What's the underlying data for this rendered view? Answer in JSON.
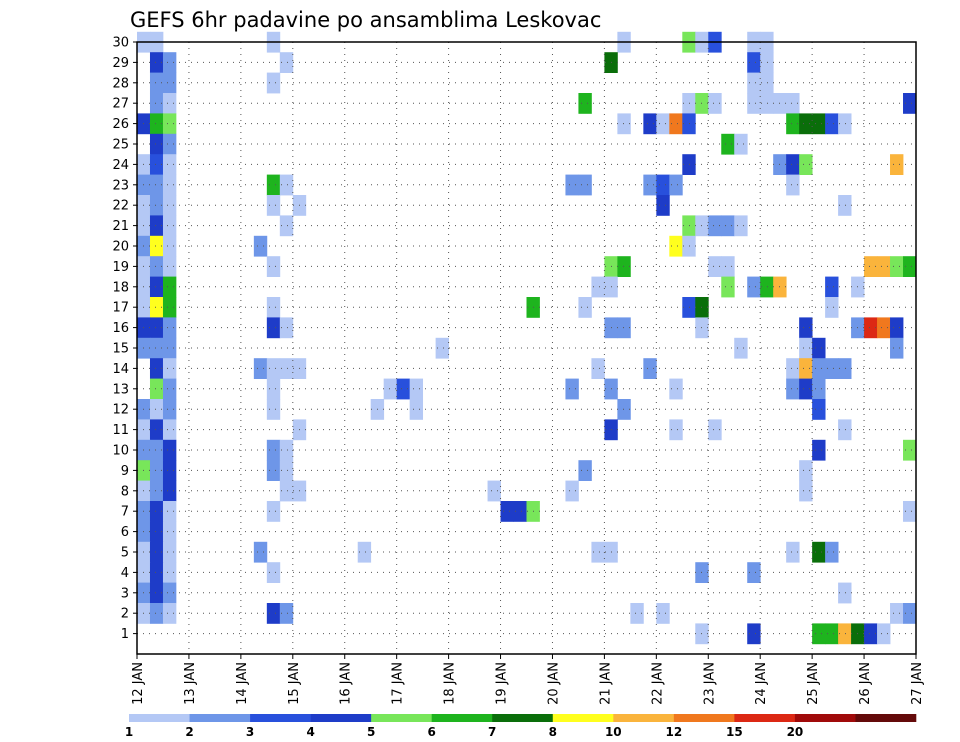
{
  "chart_data": {
    "type": "heatmap",
    "title": "GEFS 6hr padavine po ansamblima Leskovac",
    "xlabel": "",
    "ylabel": "",
    "x_ticks": [
      "12 JAN",
      "13 JAN",
      "14 JAN",
      "15 JAN",
      "16 JAN",
      "17 JAN",
      "18 JAN",
      "19 JAN",
      "20 JAN",
      "21 JAN",
      "22 JAN",
      "23 JAN",
      "24 JAN",
      "25 JAN",
      "26 JAN",
      "27 JAN"
    ],
    "x_range_days": [
      0,
      15
    ],
    "y_ticks": [
      "1",
      "2",
      "3",
      "4",
      "5",
      "6",
      "7",
      "8",
      "9",
      "10",
      "11",
      "12",
      "13",
      "14",
      "15",
      "16",
      "17",
      "18",
      "19",
      "20",
      "21",
      "22",
      "23",
      "24",
      "25",
      "26",
      "27",
      "28",
      "29",
      "30"
    ],
    "y_range": [
      0,
      30
    ],
    "grid": true,
    "colorbar": {
      "position": "bottom",
      "bins": [
        {
          "lower": "1",
          "color": "#b4c8f5"
        },
        {
          "lower": "2",
          "color": "#6e96e8"
        },
        {
          "lower": "3",
          "color": "#2850dc"
        },
        {
          "lower": "4",
          "color": "#1e3cc8"
        },
        {
          "lower": "5",
          "color": "#78e65a"
        },
        {
          "lower": "6",
          "color": "#1eb41e"
        },
        {
          "lower": "7",
          "color": "#0a6e0a"
        },
        {
          "lower": "8",
          "color": "#ffff1e"
        },
        {
          "lower": "10",
          "color": "#fab43c"
        },
        {
          "lower": "12",
          "color": "#f0781e"
        },
        {
          "lower": "15",
          "color": "#dc2814"
        },
        {
          "lower": "20",
          "color": "#a00a0a"
        },
        {
          "lower": "",
          "color": "#640a0a"
        }
      ],
      "labels": [
        "1",
        "2",
        "3",
        "4",
        "5",
        "6",
        "7",
        "8",
        "10",
        "12",
        "15",
        "20"
      ]
    },
    "cell_duration_days": 0.25,
    "cells": [
      {
        "m": 30,
        "t": 0.0,
        "b": 0
      },
      {
        "m": 30,
        "t": 0.25,
        "b": 0
      },
      {
        "m": 30,
        "t": 2.5,
        "b": 0
      },
      {
        "m": 30,
        "t": 9.25,
        "b": 0
      },
      {
        "m": 30,
        "t": 10.5,
        "b": 4
      },
      {
        "m": 30,
        "t": 10.75,
        "b": 0
      },
      {
        "m": 30,
        "t": 11.0,
        "b": 2
      },
      {
        "m": 30,
        "t": 11.75,
        "b": 0
      },
      {
        "m": 30,
        "t": 12.0,
        "b": 0
      },
      {
        "m": 29,
        "t": 0.25,
        "b": 3
      },
      {
        "m": 29,
        "t": 0.5,
        "b": 1
      },
      {
        "m": 29,
        "t": 2.75,
        "b": 0
      },
      {
        "m": 29,
        "t": 9.0,
        "b": 6
      },
      {
        "m": 29,
        "t": 11.75,
        "b": 2
      },
      {
        "m": 29,
        "t": 12.0,
        "b": 0
      },
      {
        "m": 28,
        "t": 0.25,
        "b": 1
      },
      {
        "m": 28,
        "t": 0.5,
        "b": 1
      },
      {
        "m": 28,
        "t": 2.5,
        "b": 0
      },
      {
        "m": 28,
        "t": 11.75,
        "b": 0
      },
      {
        "m": 28,
        "t": 12.0,
        "b": 0
      },
      {
        "m": 27,
        "t": 0.25,
        "b": 1
      },
      {
        "m": 27,
        "t": 0.5,
        "b": 0
      },
      {
        "m": 27,
        "t": 8.5,
        "b": 5
      },
      {
        "m": 27,
        "t": 10.5,
        "b": 0
      },
      {
        "m": 27,
        "t": 10.75,
        "b": 4
      },
      {
        "m": 27,
        "t": 11.0,
        "b": 0
      },
      {
        "m": 27,
        "t": 11.75,
        "b": 0
      },
      {
        "m": 27,
        "t": 12.0,
        "b": 0
      },
      {
        "m": 27,
        "t": 12.25,
        "b": 0
      },
      {
        "m": 27,
        "t": 12.5,
        "b": 0
      },
      {
        "m": 27,
        "t": 14.75,
        "b": 3
      },
      {
        "m": 26,
        "t": 0.0,
        "b": 3
      },
      {
        "m": 26,
        "t": 0.25,
        "b": 5
      },
      {
        "m": 26,
        "t": 0.5,
        "b": 4
      },
      {
        "m": 26,
        "t": 9.25,
        "b": 0
      },
      {
        "m": 26,
        "t": 9.75,
        "b": 3
      },
      {
        "m": 26,
        "t": 10.0,
        "b": 0
      },
      {
        "m": 26,
        "t": 10.25,
        "b": 9
      },
      {
        "m": 26,
        "t": 10.5,
        "b": 2
      },
      {
        "m": 26,
        "t": 12.5,
        "b": 5
      },
      {
        "m": 26,
        "t": 12.75,
        "b": 6
      },
      {
        "m": 26,
        "t": 13.0,
        "b": 6
      },
      {
        "m": 26,
        "t": 13.25,
        "b": 2
      },
      {
        "m": 26,
        "t": 13.5,
        "b": 0
      },
      {
        "m": 25,
        "t": 0.25,
        "b": 3
      },
      {
        "m": 25,
        "t": 0.5,
        "b": 1
      },
      {
        "m": 25,
        "t": 11.25,
        "b": 5
      },
      {
        "m": 25,
        "t": 11.5,
        "b": 0
      },
      {
        "m": 24,
        "t": 0.0,
        "b": 0
      },
      {
        "m": 24,
        "t": 0.25,
        "b": 2
      },
      {
        "m": 24,
        "t": 0.5,
        "b": 0
      },
      {
        "m": 24,
        "t": 10.5,
        "b": 3
      },
      {
        "m": 24,
        "t": 12.25,
        "b": 1
      },
      {
        "m": 24,
        "t": 12.5,
        "b": 3
      },
      {
        "m": 24,
        "t": 12.75,
        "b": 4
      },
      {
        "m": 24,
        "t": 14.5,
        "b": 8
      },
      {
        "m": 23,
        "t": 0.0,
        "b": 1
      },
      {
        "m": 23,
        "t": 0.25,
        "b": 1
      },
      {
        "m": 23,
        "t": 0.5,
        "b": 0
      },
      {
        "m": 23,
        "t": 2.5,
        "b": 5
      },
      {
        "m": 23,
        "t": 2.75,
        "b": 0
      },
      {
        "m": 23,
        "t": 8.25,
        "b": 1
      },
      {
        "m": 23,
        "t": 8.5,
        "b": 1
      },
      {
        "m": 23,
        "t": 9.75,
        "b": 1
      },
      {
        "m": 23,
        "t": 10.0,
        "b": 2
      },
      {
        "m": 23,
        "t": 10.25,
        "b": 1
      },
      {
        "m": 23,
        "t": 12.5,
        "b": 0
      },
      {
        "m": 22,
        "t": 0.0,
        "b": 0
      },
      {
        "m": 22,
        "t": 0.25,
        "b": 1
      },
      {
        "m": 22,
        "t": 0.5,
        "b": 0
      },
      {
        "m": 22,
        "t": 2.5,
        "b": 0
      },
      {
        "m": 22,
        "t": 3.0,
        "b": 0
      },
      {
        "m": 22,
        "t": 10.0,
        "b": 3
      },
      {
        "m": 22,
        "t": 13.5,
        "b": 0
      },
      {
        "m": 21,
        "t": 0.0,
        "b": 0
      },
      {
        "m": 21,
        "t": 0.25,
        "b": 3
      },
      {
        "m": 21,
        "t": 0.5,
        "b": 0
      },
      {
        "m": 21,
        "t": 2.75,
        "b": 0
      },
      {
        "m": 21,
        "t": 10.5,
        "b": 4
      },
      {
        "m": 21,
        "t": 10.75,
        "b": 0
      },
      {
        "m": 21,
        "t": 11.0,
        "b": 1
      },
      {
        "m": 21,
        "t": 11.25,
        "b": 1
      },
      {
        "m": 21,
        "t": 11.5,
        "b": 0
      },
      {
        "m": 20,
        "t": 0.0,
        "b": 1
      },
      {
        "m": 20,
        "t": 0.25,
        "b": 7
      },
      {
        "m": 20,
        "t": 0.5,
        "b": 0
      },
      {
        "m": 20,
        "t": 2.25,
        "b": 1
      },
      {
        "m": 20,
        "t": 10.25,
        "b": 7
      },
      {
        "m": 20,
        "t": 10.5,
        "b": 0
      },
      {
        "m": 19,
        "t": 0.0,
        "b": 0
      },
      {
        "m": 19,
        "t": 0.25,
        "b": 1
      },
      {
        "m": 19,
        "t": 0.5,
        "b": 0
      },
      {
        "m": 19,
        "t": 2.5,
        "b": 0
      },
      {
        "m": 19,
        "t": 9.0,
        "b": 4
      },
      {
        "m": 19,
        "t": 9.25,
        "b": 5
      },
      {
        "m": 19,
        "t": 11.0,
        "b": 0
      },
      {
        "m": 19,
        "t": 11.25,
        "b": 0
      },
      {
        "m": 19,
        "t": 14.0,
        "b": 8
      },
      {
        "m": 19,
        "t": 14.25,
        "b": 8
      },
      {
        "m": 19,
        "t": 14.5,
        "b": 4
      },
      {
        "m": 19,
        "t": 14.75,
        "b": 5
      },
      {
        "m": 18,
        "t": 0.0,
        "b": 0
      },
      {
        "m": 18,
        "t": 0.25,
        "b": 3
      },
      {
        "m": 18,
        "t": 0.5,
        "b": 5
      },
      {
        "m": 18,
        "t": 8.75,
        "b": 0
      },
      {
        "m": 18,
        "t": 9.0,
        "b": 0
      },
      {
        "m": 18,
        "t": 11.25,
        "b": 4
      },
      {
        "m": 18,
        "t": 11.75,
        "b": 1
      },
      {
        "m": 18,
        "t": 12.0,
        "b": 5
      },
      {
        "m": 18,
        "t": 12.25,
        "b": 8
      },
      {
        "m": 18,
        "t": 13.25,
        "b": 2
      },
      {
        "m": 18,
        "t": 13.75,
        "b": 0
      },
      {
        "m": 17,
        "t": 0.0,
        "b": 0
      },
      {
        "m": 17,
        "t": 0.25,
        "b": 7
      },
      {
        "m": 17,
        "t": 0.5,
        "b": 5
      },
      {
        "m": 17,
        "t": 2.5,
        "b": 0
      },
      {
        "m": 17,
        "t": 7.5,
        "b": 5
      },
      {
        "m": 17,
        "t": 8.5,
        "b": 0
      },
      {
        "m": 17,
        "t": 10.5,
        "b": 2
      },
      {
        "m": 17,
        "t": 10.75,
        "b": 6
      },
      {
        "m": 17,
        "t": 13.25,
        "b": 0
      },
      {
        "m": 16,
        "t": 0.0,
        "b": 3
      },
      {
        "m": 16,
        "t": 0.25,
        "b": 3
      },
      {
        "m": 16,
        "t": 0.5,
        "b": 1
      },
      {
        "m": 16,
        "t": 2.5,
        "b": 3
      },
      {
        "m": 16,
        "t": 2.75,
        "b": 0
      },
      {
        "m": 16,
        "t": 9.0,
        "b": 1
      },
      {
        "m": 16,
        "t": 9.25,
        "b": 1
      },
      {
        "m": 16,
        "t": 10.75,
        "b": 0
      },
      {
        "m": 16,
        "t": 12.75,
        "b": 3
      },
      {
        "m": 16,
        "t": 13.75,
        "b": 1
      },
      {
        "m": 16,
        "t": 14.0,
        "b": 10
      },
      {
        "m": 16,
        "t": 14.25,
        "b": 9
      },
      {
        "m": 16,
        "t": 14.5,
        "b": 3
      },
      {
        "m": 15,
        "t": 0.0,
        "b": 1
      },
      {
        "m": 15,
        "t": 0.25,
        "b": 1
      },
      {
        "m": 15,
        "t": 0.5,
        "b": 1
      },
      {
        "m": 15,
        "t": 5.75,
        "b": 0
      },
      {
        "m": 15,
        "t": 11.5,
        "b": 0
      },
      {
        "m": 15,
        "t": 12.75,
        "b": 0
      },
      {
        "m": 15,
        "t": 13.0,
        "b": 3
      },
      {
        "m": 15,
        "t": 14.5,
        "b": 1
      },
      {
        "m": 14,
        "t": 0.25,
        "b": 3
      },
      {
        "m": 14,
        "t": 0.5,
        "b": 0
      },
      {
        "m": 14,
        "t": 2.25,
        "b": 1
      },
      {
        "m": 14,
        "t": 2.5,
        "b": 0
      },
      {
        "m": 14,
        "t": 2.75,
        "b": 0
      },
      {
        "m": 14,
        "t": 3.0,
        "b": 0
      },
      {
        "m": 14,
        "t": 8.75,
        "b": 0
      },
      {
        "m": 14,
        "t": 9.75,
        "b": 1
      },
      {
        "m": 14,
        "t": 12.5,
        "b": 0
      },
      {
        "m": 14,
        "t": 12.75,
        "b": 8
      },
      {
        "m": 14,
        "t": 13.0,
        "b": 1
      },
      {
        "m": 14,
        "t": 13.25,
        "b": 1
      },
      {
        "m": 14,
        "t": 13.5,
        "b": 1
      },
      {
        "m": 13,
        "t": 0.25,
        "b": 4
      },
      {
        "m": 13,
        "t": 0.5,
        "b": 1
      },
      {
        "m": 13,
        "t": 2.5,
        "b": 0
      },
      {
        "m": 13,
        "t": 4.75,
        "b": 0
      },
      {
        "m": 13,
        "t": 5.0,
        "b": 2
      },
      {
        "m": 13,
        "t": 5.25,
        "b": 0
      },
      {
        "m": 13,
        "t": 8.25,
        "b": 1
      },
      {
        "m": 13,
        "t": 9.0,
        "b": 1
      },
      {
        "m": 13,
        "t": 10.25,
        "b": 0
      },
      {
        "m": 13,
        "t": 12.5,
        "b": 1
      },
      {
        "m": 13,
        "t": 12.75,
        "b": 3
      },
      {
        "m": 13,
        "t": 13.0,
        "b": 1
      },
      {
        "m": 12,
        "t": 0.0,
        "b": 1
      },
      {
        "m": 12,
        "t": 0.25,
        "b": 0
      },
      {
        "m": 12,
        "t": 0.5,
        "b": 1
      },
      {
        "m": 12,
        "t": 2.5,
        "b": 0
      },
      {
        "m": 12,
        "t": 4.5,
        "b": 0
      },
      {
        "m": 12,
        "t": 5.25,
        "b": 0
      },
      {
        "m": 12,
        "t": 9.25,
        "b": 1
      },
      {
        "m": 12,
        "t": 13.0,
        "b": 2
      },
      {
        "m": 11,
        "t": 0.0,
        "b": 0
      },
      {
        "m": 11,
        "t": 0.25,
        "b": 3
      },
      {
        "m": 11,
        "t": 0.5,
        "b": 0
      },
      {
        "m": 11,
        "t": 3.0,
        "b": 0
      },
      {
        "m": 11,
        "t": 9.0,
        "b": 3
      },
      {
        "m": 11,
        "t": 10.25,
        "b": 0
      },
      {
        "m": 11,
        "t": 11.0,
        "b": 0
      },
      {
        "m": 11,
        "t": 13.5,
        "b": 0
      },
      {
        "m": 10,
        "t": 0.0,
        "b": 1
      },
      {
        "m": 10,
        "t": 0.25,
        "b": 1
      },
      {
        "m": 10,
        "t": 0.5,
        "b": 3
      },
      {
        "m": 10,
        "t": 2.5,
        "b": 1
      },
      {
        "m": 10,
        "t": 2.75,
        "b": 0
      },
      {
        "m": 10,
        "t": 13.0,
        "b": 3
      },
      {
        "m": 10,
        "t": 14.75,
        "b": 4
      },
      {
        "m": 9,
        "t": 0.0,
        "b": 4
      },
      {
        "m": 9,
        "t": 0.25,
        "b": 1
      },
      {
        "m": 9,
        "t": 0.5,
        "b": 3
      },
      {
        "m": 9,
        "t": 2.5,
        "b": 1
      },
      {
        "m": 9,
        "t": 2.75,
        "b": 0
      },
      {
        "m": 9,
        "t": 8.5,
        "b": 1
      },
      {
        "m": 9,
        "t": 12.75,
        "b": 0
      },
      {
        "m": 8,
        "t": 0.0,
        "b": 0
      },
      {
        "m": 8,
        "t": 0.25,
        "b": 1
      },
      {
        "m": 8,
        "t": 0.5,
        "b": 3
      },
      {
        "m": 8,
        "t": 2.75,
        "b": 0
      },
      {
        "m": 8,
        "t": 3.0,
        "b": 0
      },
      {
        "m": 8,
        "t": 6.75,
        "b": 0
      },
      {
        "m": 8,
        "t": 8.25,
        "b": 0
      },
      {
        "m": 8,
        "t": 12.75,
        "b": 0
      },
      {
        "m": 7,
        "t": 0.0,
        "b": 1
      },
      {
        "m": 7,
        "t": 0.25,
        "b": 3
      },
      {
        "m": 7,
        "t": 0.5,
        "b": 0
      },
      {
        "m": 7,
        "t": 2.5,
        "b": 0
      },
      {
        "m": 7,
        "t": 7.0,
        "b": 3
      },
      {
        "m": 7,
        "t": 7.25,
        "b": 3
      },
      {
        "m": 7,
        "t": 7.5,
        "b": 4
      },
      {
        "m": 7,
        "t": 14.75,
        "b": 0
      },
      {
        "m": 6,
        "t": 0.0,
        "b": 1
      },
      {
        "m": 6,
        "t": 0.25,
        "b": 3
      },
      {
        "m": 6,
        "t": 0.5,
        "b": 0
      },
      {
        "m": 5,
        "t": 0.0,
        "b": 0
      },
      {
        "m": 5,
        "t": 0.25,
        "b": 3
      },
      {
        "m": 5,
        "t": 0.5,
        "b": 0
      },
      {
        "m": 5,
        "t": 2.25,
        "b": 1
      },
      {
        "m": 5,
        "t": 4.25,
        "b": 0
      },
      {
        "m": 5,
        "t": 8.75,
        "b": 0
      },
      {
        "m": 5,
        "t": 9.0,
        "b": 0
      },
      {
        "m": 5,
        "t": 12.5,
        "b": 0
      },
      {
        "m": 5,
        "t": 13.0,
        "b": 6
      },
      {
        "m": 5,
        "t": 13.25,
        "b": 1
      },
      {
        "m": 4,
        "t": 0.0,
        "b": 0
      },
      {
        "m": 4,
        "t": 0.25,
        "b": 3
      },
      {
        "m": 4,
        "t": 0.5,
        "b": 0
      },
      {
        "m": 4,
        "t": 2.5,
        "b": 0
      },
      {
        "m": 4,
        "t": 10.75,
        "b": 1
      },
      {
        "m": 4,
        "t": 11.75,
        "b": 1
      },
      {
        "m": 3,
        "t": 0.0,
        "b": 1
      },
      {
        "m": 3,
        "t": 0.25,
        "b": 3
      },
      {
        "m": 3,
        "t": 0.5,
        "b": 1
      },
      {
        "m": 3,
        "t": 13.5,
        "b": 0
      },
      {
        "m": 2,
        "t": 0.0,
        "b": 0
      },
      {
        "m": 2,
        "t": 0.25,
        "b": 1
      },
      {
        "m": 2,
        "t": 0.5,
        "b": 0
      },
      {
        "m": 2,
        "t": 2.5,
        "b": 3
      },
      {
        "m": 2,
        "t": 2.75,
        "b": 1
      },
      {
        "m": 2,
        "t": 9.5,
        "b": 0
      },
      {
        "m": 2,
        "t": 10.0,
        "b": 0
      },
      {
        "m": 2,
        "t": 14.5,
        "b": 0
      },
      {
        "m": 2,
        "t": 14.75,
        "b": 1
      },
      {
        "m": 1,
        "t": 10.75,
        "b": 0
      },
      {
        "m": 1,
        "t": 11.75,
        "b": 3
      },
      {
        "m": 1,
        "t": 13.0,
        "b": 5
      },
      {
        "m": 1,
        "t": 13.25,
        "b": 5
      },
      {
        "m": 1,
        "t": 13.5,
        "b": 8
      },
      {
        "m": 1,
        "t": 13.75,
        "b": 6
      },
      {
        "m": 1,
        "t": 14.0,
        "b": 3
      },
      {
        "m": 1,
        "t": 14.25,
        "b": 0
      }
    ]
  }
}
